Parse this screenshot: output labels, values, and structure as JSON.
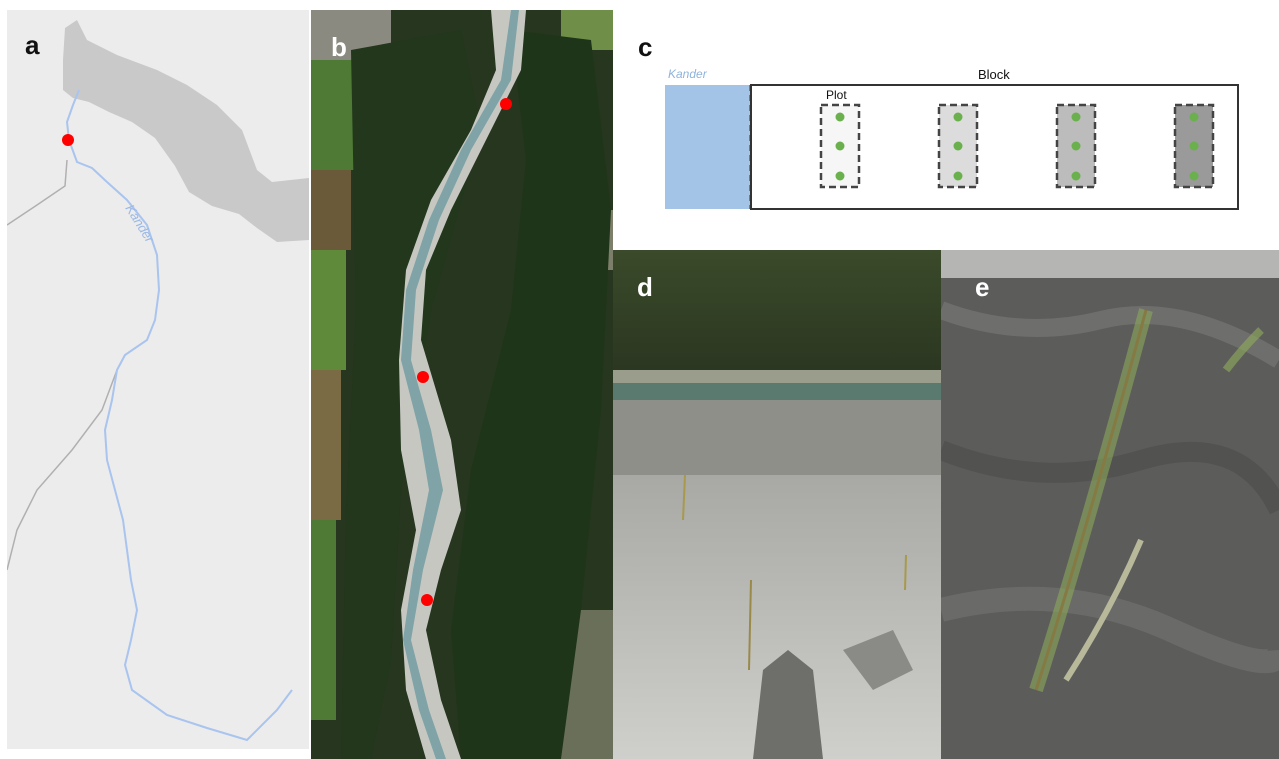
{
  "panels": {
    "a": {
      "letter": "a",
      "river_label": "Kander"
    },
    "b": {
      "letter": "b"
    },
    "c": {
      "letter": "c",
      "river_label": "Kander",
      "block_label": "Block",
      "plot_label": "Plot"
    },
    "d": {
      "letter": "d"
    },
    "e": {
      "letter": "e"
    }
  },
  "colors": {
    "lake": "#c9c9c9",
    "map_bg": "#ececec",
    "river": "#a9c4ef",
    "road": "#b0b0b0",
    "site_marker": "#ff0000",
    "water_block": "#a3c4e6",
    "seedling": "#6ab04c",
    "plot_fills": [
      "#f6f6f6",
      "#dcdcdc",
      "#bcbcbc",
      "#9a9a9a"
    ]
  }
}
